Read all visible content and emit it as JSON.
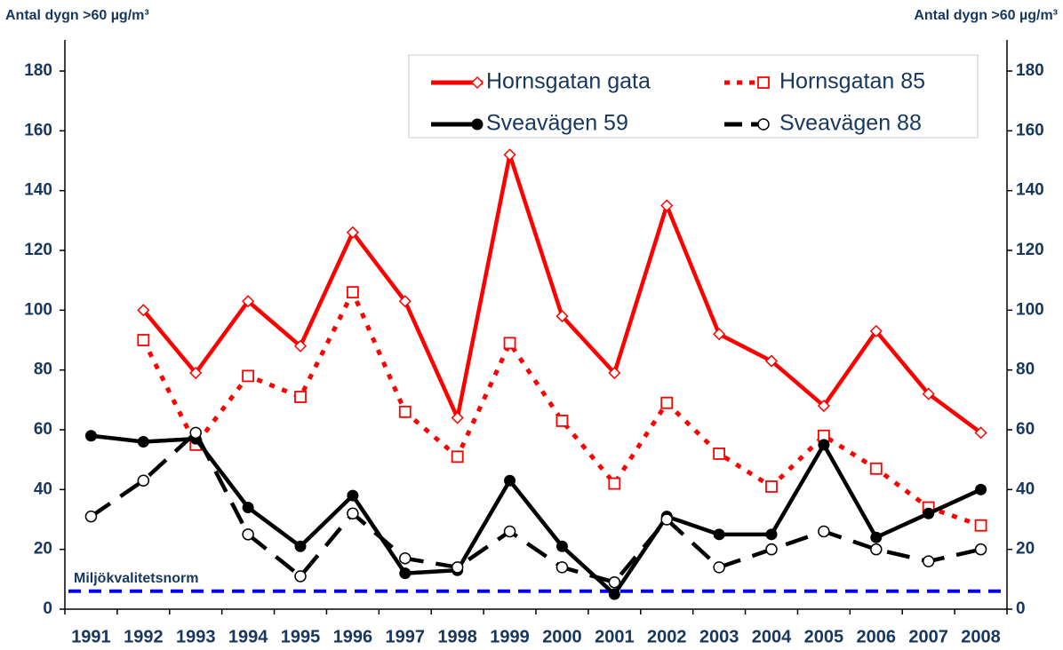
{
  "chart_data": {
    "type": "line",
    "y_label": "Antal dygn >60 µg/m³",
    "y2_label": "Antal dygn >60 µg/m³",
    "categories": [
      "1991",
      "1992",
      "1993",
      "1994",
      "1995",
      "1996",
      "1997",
      "1998",
      "1999",
      "2000",
      "2001",
      "2002",
      "2003",
      "2004",
      "2005",
      "2006",
      "2007",
      "2008"
    ],
    "series": [
      {
        "name": "Hornsgatan gata",
        "color": "#ff0000",
        "style": "solid",
        "marker": "diamond",
        "values": [
          null,
          100,
          79,
          103,
          88,
          126,
          103,
          64,
          152,
          98,
          79,
          135,
          92,
          83,
          68,
          93,
          72,
          59
        ]
      },
      {
        "name": "Hornsgatan 85",
        "color": "#ff0000",
        "style": "dotted",
        "marker": "square",
        "values": [
          null,
          90,
          55,
          78,
          71,
          106,
          66,
          51,
          89,
          63,
          42,
          69,
          52,
          41,
          58,
          47,
          34,
          28
        ]
      },
      {
        "name": "Sveavägen 59",
        "color": "#000000",
        "style": "solid",
        "marker": "filled-circle",
        "values": [
          58,
          56,
          57,
          34,
          21,
          38,
          12,
          13,
          43,
          21,
          5,
          31,
          25,
          25,
          55,
          24,
          32,
          40
        ]
      },
      {
        "name": "Sveavägen 88",
        "color": "#000000",
        "style": "dashed",
        "marker": "open-circle",
        "values": [
          31,
          43,
          59,
          25,
          11,
          32,
          17,
          14,
          26,
          14,
          9,
          30,
          14,
          20,
          26,
          20,
          16,
          20
        ]
      }
    ],
    "ylim": [
      0,
      180
    ],
    "yticks": [
      0,
      20,
      40,
      60,
      80,
      100,
      120,
      140,
      160,
      180
    ],
    "y2lim": [
      0,
      180
    ],
    "y2ticks": [
      0,
      20,
      40,
      60,
      80,
      100,
      120,
      140,
      160,
      180
    ],
    "grid": false,
    "legend": "upper right",
    "annotations": [
      {
        "label": "Miljökvalitetsnorm",
        "value": 6,
        "color": "#0000ff"
      }
    ]
  }
}
